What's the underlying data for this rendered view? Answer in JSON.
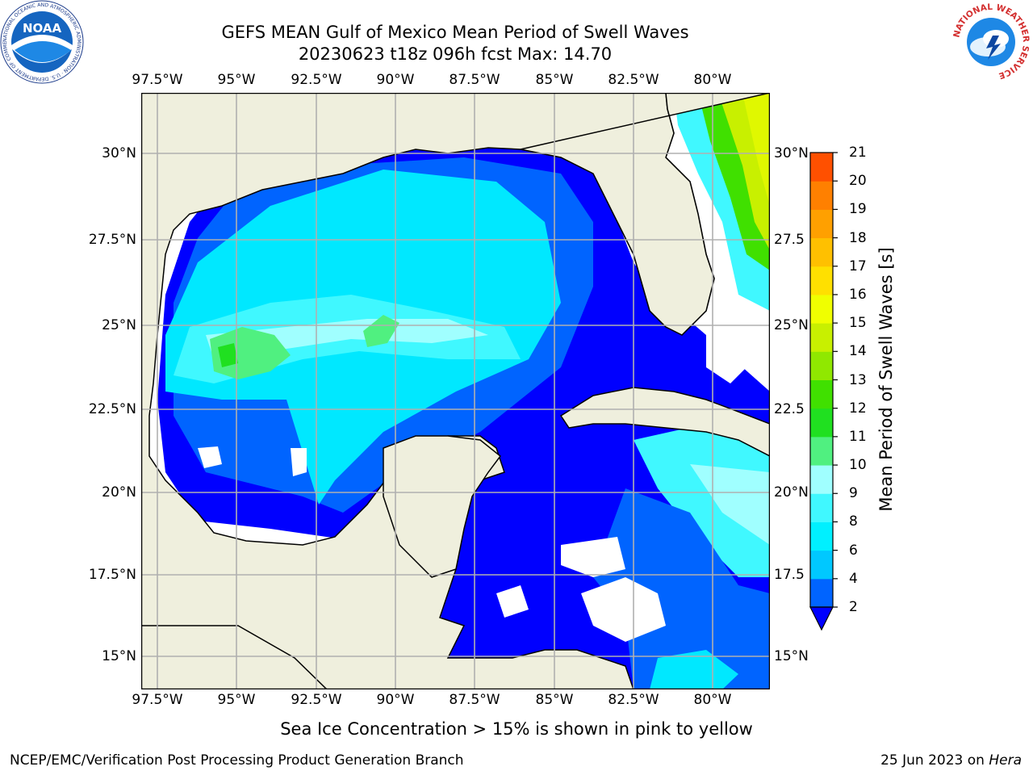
{
  "header": {
    "title": "GEFS MEAN Gulf of Mexico Mean Period of Swell Waves",
    "subtitle": "20230623 t18z 096h fcst   Max: 14.70"
  },
  "logos": {
    "noaa_text": "NOAA",
    "noaa_ring": "NATIONAL OCEANIC AND ATMOSPHERIC ADMINISTRATION · U.S. DEPARTMENT OF COMMERCE",
    "nws_ring": "NATIONAL WEATHER SERVICE"
  },
  "map": {
    "lon_labels": [
      "97.5°W",
      "95°W",
      "92.5°W",
      "90°W",
      "87.5°W",
      "85°W",
      "82.5°W",
      "80°W"
    ],
    "lat_labels": [
      "30°N",
      "27.5°N",
      "25°N",
      "22.5°N",
      "20°N",
      "17.5°N",
      "15°N"
    ],
    "right_lat_labels": [
      "30°N",
      "27.5",
      "25°N",
      "22.5",
      "20°N",
      "17.5",
      "15°N"
    ],
    "colors": {
      "land": "#efefdd",
      "grid": "#b0b0b0"
    }
  },
  "colorbar": {
    "label": "Mean Period of Swell Waves [s]",
    "ticks": [
      "2",
      "4",
      "6",
      "8",
      "9",
      "10",
      "11",
      "12",
      "13",
      "14",
      "15",
      "16",
      "17",
      "18",
      "19",
      "20",
      "21"
    ],
    "colors": [
      "#0064ff",
      "#00c8ff",
      "#00f0ff",
      "#40f8ff",
      "#a0ffff",
      "#50f080",
      "#20e020",
      "#40e000",
      "#90e800",
      "#c8f000",
      "#f0ff00",
      "#ffe000",
      "#ffc000",
      "#ffa000",
      "#ff8000",
      "#ff5000",
      "#ff2000",
      "#ff0000"
    ],
    "extend_color": "#0000ff"
  },
  "footer": {
    "note": "Sea Ice Concentration > 15% is shown in pink to yellow",
    "credit": "NCEP/EMC/Verification Post Processing Product Generation Branch",
    "date": "25 Jun 2023 on ",
    "host": "Hera"
  }
}
